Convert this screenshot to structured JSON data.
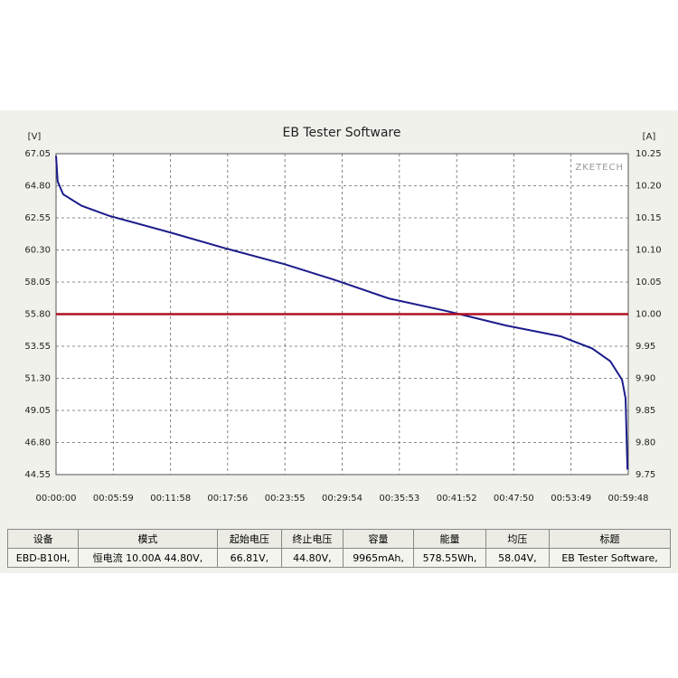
{
  "chart_data": {
    "type": "line",
    "title": "EB Tester Software",
    "y_label": "[V]",
    "y2_label": "[A]",
    "annotation": "ZKETECH",
    "xlim": [
      0,
      3588
    ],
    "ylim": [
      44.55,
      67.05
    ],
    "y2lim": [
      9.75,
      10.25
    ],
    "grid": true,
    "xticks": [
      {
        "value": 0,
        "label": "00:00:00"
      },
      {
        "value": 359,
        "label": "00:05:59"
      },
      {
        "value": 718,
        "label": "00:11:58"
      },
      {
        "value": 1076,
        "label": "00:17:56"
      },
      {
        "value": 1435,
        "label": "00:23:55"
      },
      {
        "value": 1794,
        "label": "00:29:54"
      },
      {
        "value": 2153,
        "label": "00:35:53"
      },
      {
        "value": 2512,
        "label": "00:41:52"
      },
      {
        "value": 2870,
        "label": "00:47:50"
      },
      {
        "value": 3229,
        "label": "00:53:49"
      },
      {
        "value": 3588,
        "label": "00:59:48"
      }
    ],
    "yticks": [
      67.05,
      {
        "value": 64.8,
        "label": "64.80"
      },
      62.55,
      {
        "value": 60.3,
        "label": "60.30"
      },
      58.05,
      {
        "value": 55.8,
        "label": "55.80"
      },
      53.55,
      {
        "value": 51.3,
        "label": "51.30"
      },
      49.05,
      {
        "value": 46.8,
        "label": "46.80"
      },
      44.55
    ],
    "y2ticks": [
      10.25,
      {
        "value": 10.2,
        "label": "10.20"
      },
      10.15,
      {
        "value": 10.1,
        "label": "10.10"
      },
      10.05,
      {
        "value": 10,
        "label": "10.00"
      },
      9.95,
      {
        "value": 9.9,
        "label": "9.90"
      },
      9.85,
      {
        "value": 9.8,
        "label": "9.80"
      },
      9.75
    ],
    "series": [
      {
        "color": "#1c1c8c",
        "x": [
          0,
          5,
          10,
          45,
          160,
          330,
          725,
          1066,
          1434,
          1746,
          2086,
          2455,
          2823,
          3163,
          3361,
          3475,
          3549,
          3571,
          3583
        ],
        "values": [
          66.9,
          66.0,
          65.1,
          64.2,
          63.4,
          62.7,
          61.5,
          60.4,
          59.3,
          58.2,
          56.9,
          56.0,
          55.0,
          54.25,
          53.4,
          52.5,
          51.2,
          49.9,
          44.9
        ]
      },
      {
        "color": "#b01020",
        "axis": "y2",
        "x": [
          0,
          3588
        ],
        "values": [
          10.0,
          10.0
        ]
      }
    ]
  },
  "table": {
    "header": [
      "设备",
      "模式",
      "起始电压",
      "终止电压",
      "容量",
      "能量",
      "均压",
      "标题"
    ],
    "row": [
      "EBD-B10H,",
      "恒电流  10.00A  44.80V,",
      "66.81V,",
      "44.80V,",
      "9965mAh,",
      "578.55Wh,",
      "58.04V,",
      "EB Tester Software,"
    ]
  }
}
